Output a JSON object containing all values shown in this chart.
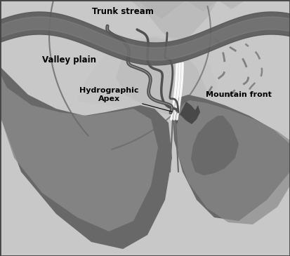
{
  "bg_color": "#d0d0d0",
  "border_color": "#444444",
  "labels": {
    "hydrographic_apex": "Hydrographic\nApex",
    "mountain_front": "Mountain front",
    "valley_plain": "Valley plain",
    "trunk_stream": "Trunk stream"
  },
  "colors": {
    "sky_bg": "#c8c8c8",
    "mountain_dark": "#686868",
    "mountain_mid": "#8a8a8a",
    "mountain_light": "#b0b0b0",
    "mountain_inner": "#9a9a9a",
    "fan_light": "#c4c4c4",
    "fan_mid": "#b8b8b8",
    "stream_dark": "#505050",
    "stream_mid": "#707070",
    "white_line": "#e0e0e0",
    "rocky": "#484848",
    "dashed": "#686868",
    "trunk_dark": "#585858",
    "trunk_highlight": "#909090"
  }
}
